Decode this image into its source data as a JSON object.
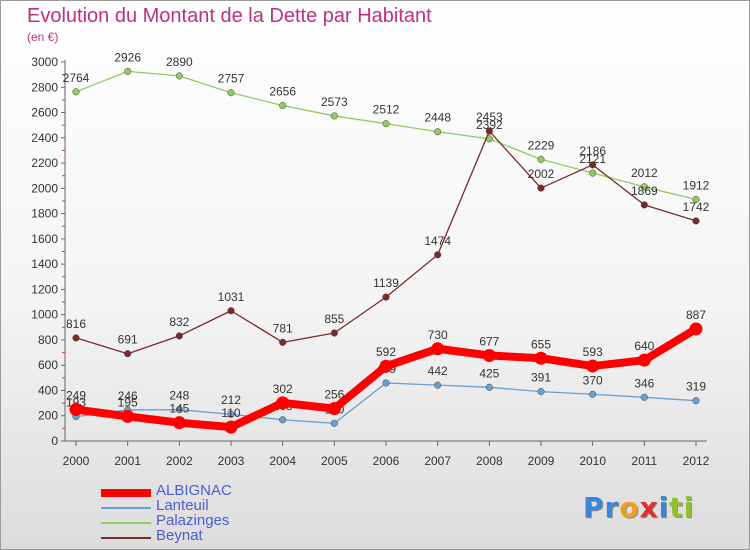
{
  "title": "Evolution du Montant de la Dette par Habitant",
  "subtitle": "(en €)",
  "logo": {
    "letters": [
      "P",
      "r",
      "o",
      "x",
      "i",
      "t",
      "i"
    ],
    "colors": [
      "#3a86d8",
      "#3a86d8",
      "#f0a020",
      "#e03030",
      "#3a86d8",
      "#90c030",
      "#90c030"
    ]
  },
  "chart_data": {
    "type": "line",
    "x": [
      "2000",
      "2001",
      "2002",
      "2003",
      "2004",
      "2005",
      "2006",
      "2007",
      "2008",
      "2009",
      "2010",
      "2011",
      "2012"
    ],
    "ylim": [
      0,
      3000
    ],
    "yticks": [
      0,
      200,
      400,
      600,
      800,
      1000,
      1200,
      1400,
      1600,
      1800,
      2000,
      2200,
      2400,
      2600,
      2800,
      3000
    ],
    "grid": false,
    "legend": "bottom-left",
    "series": [
      {
        "name": "Palazinges",
        "color": "#90cc60",
        "values": [
          2764,
          2926,
          2890,
          2757,
          2656,
          2573,
          2512,
          2448,
          2392,
          2229,
          2121,
          2012,
          1912
        ],
        "labels": [
          "2764",
          "2926",
          "2890",
          "2757",
          "2656",
          "2573",
          "2512",
          "2448",
          "2392",
          "2229",
          "2121",
          "2012",
          "1912"
        ]
      },
      {
        "name": "Beynat",
        "color": "#7a2a2a",
        "values": [
          816,
          691,
          832,
          1031,
          781,
          855,
          1139,
          1474,
          2453,
          2002,
          2186,
          1869,
          1742
        ],
        "labels": [
          "816",
          "691",
          "832",
          "1031",
          "781",
          "855",
          "1139",
          "1474",
          "2453",
          "2002",
          "2186",
          "1869",
          "1742"
        ]
      },
      {
        "name": "Lanteuil",
        "color": "#6a9fd0",
        "values": [
          193,
          246,
          248,
          212,
          168,
          140,
          459,
          442,
          425,
          391,
          370,
          346,
          319
        ],
        "labels": [
          "193",
          "246",
          "248",
          "212",
          "168",
          "140",
          "459",
          "442",
          "425",
          "391",
          "370",
          "346",
          "319"
        ]
      },
      {
        "name": "ALBIGNAC",
        "color": "#ff0000",
        "values": [
          249,
          195,
          145,
          110,
          302,
          256,
          592,
          730,
          677,
          655,
          593,
          640,
          887
        ],
        "labels": [
          "249",
          "195",
          "145",
          "110",
          "302",
          "256",
          "592",
          "730",
          "677",
          "655",
          "593",
          "640",
          "887"
        ]
      }
    ],
    "legend_order": [
      "ALBIGNAC",
      "Lanteuil",
      "Palazinges",
      "Beynat"
    ]
  }
}
